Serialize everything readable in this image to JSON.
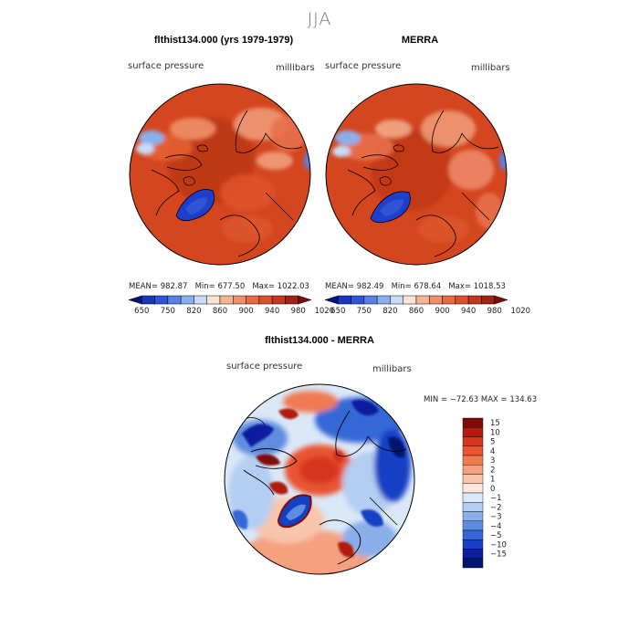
{
  "figure": {
    "title": "JJA"
  },
  "panels": {
    "left": {
      "title": "flthist134.000 (yrs 1979-1979)",
      "variable": "surface pressure",
      "units": "millibars",
      "stats": {
        "mean_label": "MEAN=",
        "mean": "982.87",
        "min_label": "Min=",
        "min": "677.50",
        "max_label": "Max=",
        "max": "1022.03"
      }
    },
    "right": {
      "title": "MERRA",
      "variable": "surface pressure",
      "units": "millibars",
      "stats": {
        "mean_label": "MEAN=",
        "mean": "982.49",
        "min_label": "Min=",
        "min": "678.64",
        "max_label": "Max=",
        "max": "1018.53"
      }
    },
    "diff": {
      "title": "flthist134.000 - MERRA",
      "variable": "surface pressure",
      "units": "millibars",
      "minmax": "MIN = −72.63  MAX = 134.63"
    }
  },
  "colorbars": {
    "abs": {
      "labels": [
        "650",
        "750",
        "820",
        "860",
        "900",
        "940",
        "980",
        "1020"
      ],
      "colors": [
        "#06127a",
        "#1a35b8",
        "#2f55d6",
        "#5a80e6",
        "#8bb0f0",
        "#c8dcf7",
        "#fde3d3",
        "#f7b596",
        "#f08e68",
        "#e86b43",
        "#d9522c",
        "#c0381c",
        "#a12213",
        "#7e0c0c"
      ]
    },
    "diff": {
      "labels": [
        "15",
        "10",
        "5",
        "4",
        "3",
        "2",
        "1",
        "0",
        "−1",
        "−2",
        "−3",
        "−4",
        "−5",
        "−10",
        "−15"
      ],
      "colors": [
        "#7f0a0a",
        "#b01c10",
        "#d5361c",
        "#e85530",
        "#f07a52",
        "#f5a07e",
        "#f9c5ad",
        "#fde6da",
        "#dbe8f8",
        "#b4cdf2",
        "#8aaee9",
        "#5e8ce0",
        "#3467d6",
        "#1640c4",
        "#0a1f9e",
        "#00146e"
      ]
    }
  }
}
